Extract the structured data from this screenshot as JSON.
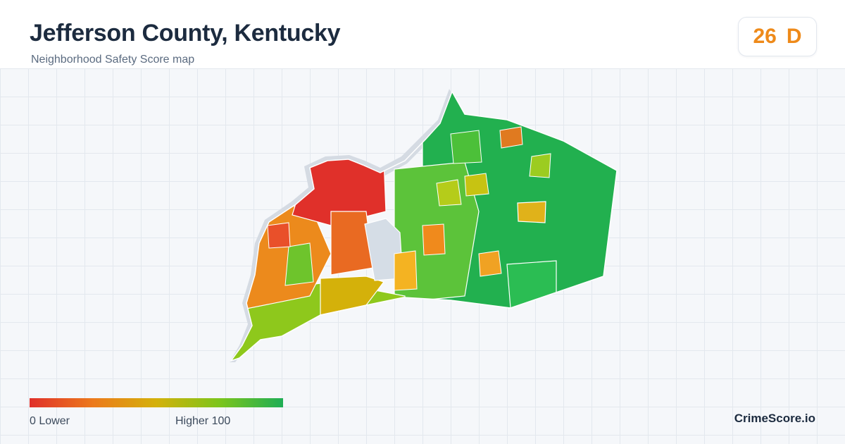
{
  "header": {
    "title": "Jefferson County, Kentucky",
    "subtitle": "Neighborhood Safety Score map"
  },
  "score": {
    "value": "26",
    "grade": "D",
    "color": "#ee8a1a"
  },
  "legend": {
    "min_label": "0  Lower",
    "max_label": "Higher  100",
    "colors": [
      "#e0302a",
      "#ec7a1c",
      "#d4b10a",
      "#7cc51c",
      "#1fae55"
    ]
  },
  "brand": "CrimeScore.io"
}
